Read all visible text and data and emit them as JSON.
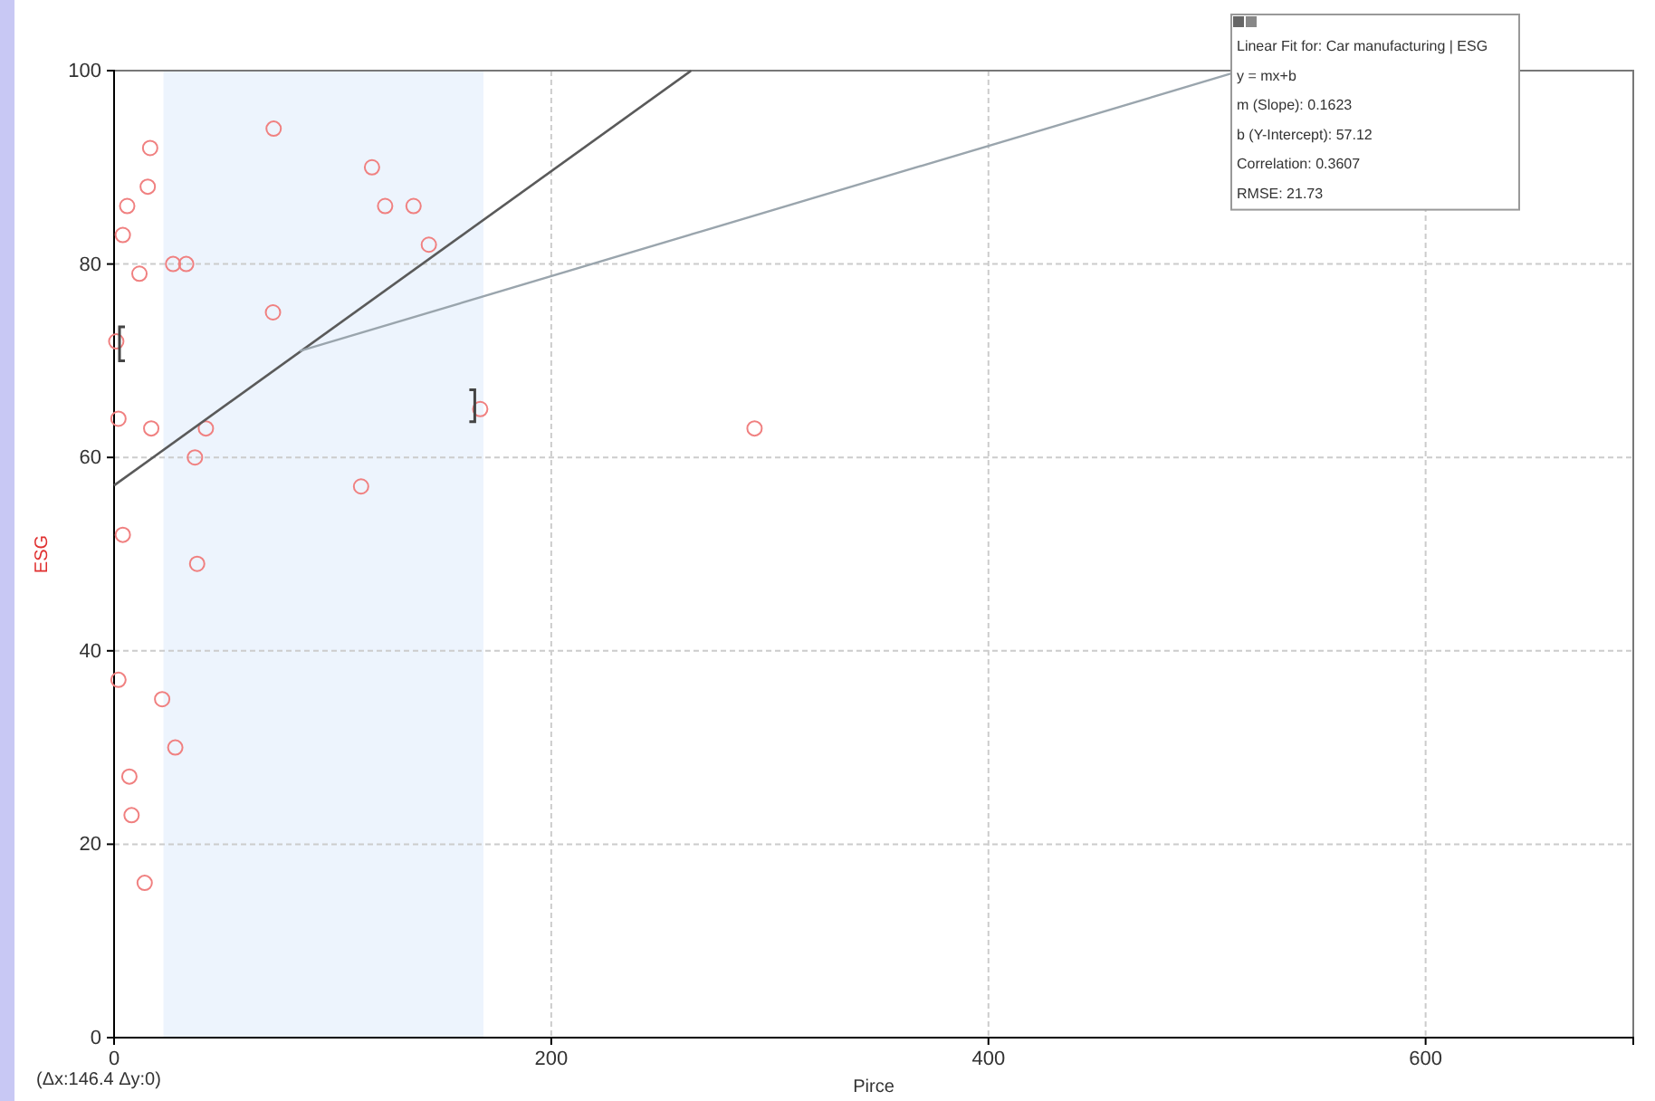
{
  "chart_data": {
    "type": "scatter",
    "xlabel": "Pirce",
    "ylabel": "ESG",
    "xlim": [
      0,
      695
    ],
    "ylim": [
      0,
      100
    ],
    "xticks": [
      0,
      200,
      400,
      600
    ],
    "yticks": [
      0,
      20,
      40,
      60,
      80,
      100
    ],
    "grid": true,
    "marker": "circle",
    "series": [
      {
        "color": "#f08080",
        "x": [
          73,
          16.5,
          118,
          15.4,
          6,
          124,
          137,
          4,
          144,
          27,
          33,
          11.6,
          72.7,
          1,
          167.5,
          2,
          17,
          42,
          37,
          113,
          4,
          293,
          38,
          2,
          22,
          28,
          7,
          8,
          14
        ],
        "values": [
          94,
          92,
          90,
          88,
          86,
          86,
          86,
          83,
          82,
          80,
          80,
          79,
          75,
          72,
          65,
          64,
          63,
          63,
          60,
          57,
          52,
          63,
          49,
          37,
          35,
          30,
          27,
          23,
          16
        ]
      },
      {
        "type": "line",
        "color": "#5a5a5a",
        "x": [
          0,
          264
        ],
        "values": [
          57.1,
          100
        ],
        "line_style": "solid",
        "marker": "none"
      }
    ],
    "bands": [
      {
        "axis": "x",
        "from": 22.6,
        "to": 169,
        "color": "#edf4fd"
      }
    ],
    "annotations": [
      "(Δx:146.4 Δy:0)",
      "Linear Fit for: Car manufacturing | ESG",
      "y = mx+b",
      "m (Slope): 0.1623",
      "b (Y-Intercept): 57.12",
      "Correlation: 0.3607",
      "RMSE: 21.73"
    ]
  }
}
